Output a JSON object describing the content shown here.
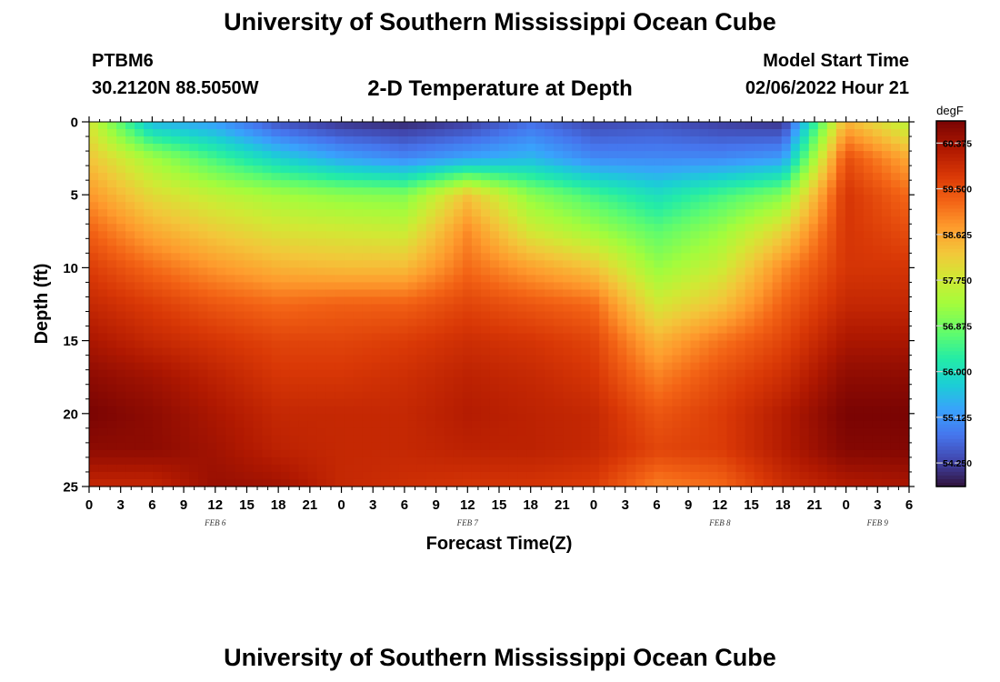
{
  "header": {
    "title": "University of Southern Mississippi Ocean Cube",
    "station_id": "PTBM6",
    "coordinates": "30.2120N  88.5050W",
    "plot_title": "2-D Temperature at Depth",
    "model_start_label": "Model Start Time",
    "model_start_time": "02/06/2022 Hour 21",
    "footer_title": "University of Southern Mississippi Ocean Cube"
  },
  "chart_data": {
    "type": "heatmap",
    "xlabel": "Forecast Time(Z)",
    "ylabel": "Depth (ft)",
    "xlim": [
      0,
      78
    ],
    "ylim": [
      25,
      0
    ],
    "x_tick_labels": [
      "0",
      "3",
      "6",
      "9",
      "12",
      "15",
      "18",
      "21",
      "0",
      "3",
      "6",
      "9",
      "12",
      "15",
      "18",
      "21",
      "0",
      "3",
      "6",
      "9",
      "12",
      "15",
      "18",
      "21",
      "0",
      "3",
      "6"
    ],
    "date_labels": [
      {
        "label": "FEB 6",
        "at_hour": 12
      },
      {
        "label": "FEB 7",
        "at_hour": 36
      },
      {
        "label": "FEB 8",
        "at_hour": 60
      },
      {
        "label": "FEB 9",
        "at_hour": 75
      }
    ],
    "y_ticks": [
      0,
      5,
      10,
      15,
      20,
      25
    ],
    "colorbar": {
      "unit": "degF",
      "min": 53.8,
      "max": 60.8,
      "tick_values": [
        54.25,
        55.125,
        56.0,
        56.875,
        57.75,
        58.625,
        59.5,
        60.375
      ],
      "tick_labels": [
        "54.250",
        "55.125",
        "56.000",
        "56.875",
        "57.750",
        "58.625",
        "59.500",
        "60.375"
      ]
    },
    "depths_ft": [
      0,
      2.5,
      5,
      7.5,
      10,
      12.5,
      15,
      17.5,
      20,
      22.5,
      25
    ],
    "hours": [
      0,
      6,
      12,
      18,
      24,
      30,
      36,
      42,
      48,
      54,
      60,
      66,
      72,
      78
    ],
    "temperature_degF": [
      [
        57.8,
        55.5,
        55.2,
        54.4,
        54.1,
        54.0,
        54.2,
        54.7,
        54.3,
        54.4,
        54.2,
        54.1,
        58.5,
        57.5
      ],
      [
        58.3,
        57.3,
        56.5,
        55.8,
        55.3,
        55.0,
        55.3,
        55.5,
        55.0,
        55.0,
        55.0,
        55.2,
        59.5,
        58.6
      ],
      [
        58.8,
        58.0,
        57.6,
        57.3,
        57.1,
        57.0,
        58.3,
        57.1,
        56.5,
        56.0,
        56.5,
        57.0,
        59.8,
        59.2
      ],
      [
        59.3,
        58.6,
        58.2,
        57.9,
        57.8,
        57.7,
        58.9,
        57.8,
        57.3,
        56.7,
        57.2,
        58.1,
        59.8,
        59.5
      ],
      [
        59.7,
        59.2,
        58.8,
        58.5,
        58.4,
        58.4,
        59.2,
        58.7,
        58.3,
        57.2,
        57.7,
        58.9,
        59.8,
        59.8
      ],
      [
        60.0,
        59.7,
        59.4,
        59.2,
        59.3,
        59.3,
        59.6,
        59.4,
        59.2,
        57.8,
        58.3,
        59.3,
        60.0,
        60.0
      ],
      [
        60.3,
        60.0,
        59.8,
        59.6,
        59.6,
        59.7,
        59.9,
        59.8,
        59.6,
        58.5,
        59.1,
        59.6,
        60.3,
        60.3
      ],
      [
        60.6,
        60.4,
        60.1,
        59.8,
        59.8,
        59.9,
        60.1,
        60.0,
        59.8,
        59.0,
        59.5,
        59.9,
        60.6,
        60.6
      ],
      [
        60.8,
        60.6,
        60.3,
        60.0,
        60.0,
        60.0,
        60.2,
        60.1,
        60.0,
        59.4,
        59.7,
        60.2,
        60.8,
        60.8
      ],
      [
        60.6,
        60.6,
        60.4,
        60.1,
        60.0,
        60.0,
        60.1,
        60.1,
        60.0,
        59.6,
        59.7,
        60.2,
        60.7,
        60.7
      ],
      [
        60.0,
        60.0,
        60.5,
        60.4,
        60.0,
        59.9,
        59.8,
        59.8,
        59.7,
        59.0,
        59.2,
        59.9,
        60.2,
        60.3
      ]
    ]
  }
}
